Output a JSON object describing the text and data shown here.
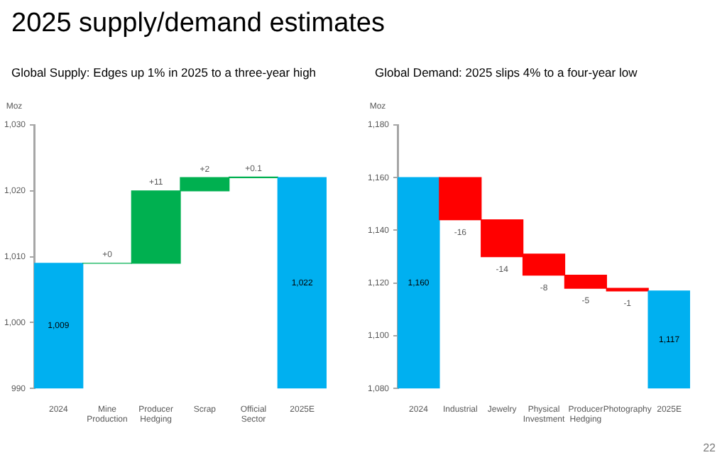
{
  "chart_data": [
    {
      "type": "bar",
      "title": "2025 supply/demand estimates",
      "subtitle": "Global Supply: Edges up 1% in 2025 to a three-year high",
      "ylabel": "Moz",
      "categories": [
        "2024",
        "Mine Production",
        "Producer Hedging",
        "Scrap",
        "Official Sector",
        "2025E"
      ],
      "values": [
        1009,
        0,
        11,
        2,
        0.1,
        1022
      ],
      "base": [
        null,
        1009,
        1009,
        1020,
        1022,
        null
      ],
      "colors": [
        "#00b0f0",
        "#00b050",
        "#00b050",
        "#00b050",
        "#00b050",
        "#00b0f0"
      ],
      "value_labels": [
        "1,009",
        "+0",
        "+11",
        "+2",
        "+0.1",
        "1,022"
      ],
      "ylim": [
        990,
        1030
      ],
      "yticks": [
        990,
        {
          "value": 1000,
          "label": "1,000"
        },
        {
          "value": 1010,
          "label": "1,010"
        },
        {
          "value": 1020,
          "label": "1,020"
        },
        {
          "value": 1030,
          "label": "1,030"
        }
      ],
      "grid": false,
      "legend": false
    },
    {
      "type": "bar",
      "title": "Global Demand: 2025 slips 4% to a four-year low",
      "ylabel": "Moz",
      "categories": [
        "2024",
        "Industrial",
        "Jewelry",
        "Physical Investment",
        "Producer Hedging",
        "Photography",
        "2025E"
      ],
      "values": [
        1160,
        -16,
        -14,
        -8,
        -5,
        -1,
        1117
      ],
      "base": [
        null,
        1160,
        1144,
        1131,
        1123,
        1118,
        null
      ],
      "colors": [
        "#00b0f0",
        "#ff0000",
        "#ff0000",
        "#ff0000",
        "#ff0000",
        "#ff0000",
        "#00b0f0"
      ],
      "value_labels": [
        "1,160",
        "-16",
        "-14",
        "-8",
        "-5",
        "-1",
        "1,117"
      ],
      "ylim": [
        1080,
        1180
      ],
      "yticks": [
        {
          "value": 1080,
          "label": "1,080"
        },
        {
          "value": 1100,
          "label": "1,100"
        },
        {
          "value": 1120,
          "label": "1,120"
        },
        {
          "value": 1140,
          "label": "1,140"
        },
        {
          "value": 1160,
          "label": "1,160"
        },
        {
          "value": 1180,
          "label": "1,180"
        }
      ],
      "annotations": [
        "22"
      ],
      "grid": false,
      "legend": false
    }
  ]
}
